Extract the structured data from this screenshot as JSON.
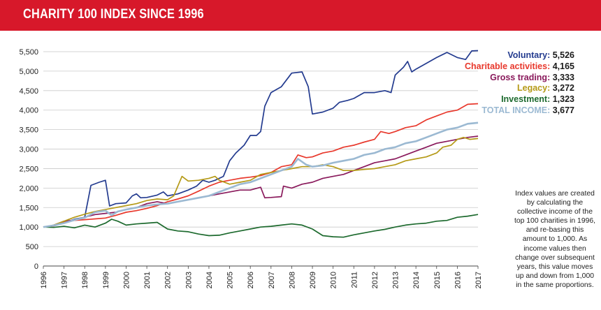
{
  "header": {
    "title": "CHARITY 100 INDEX SINCE 1996"
  },
  "legend": [
    {
      "label": "Voluntary:",
      "value": "5,526",
      "color": "#233b8f"
    },
    {
      "label": "Charitable activities:",
      "value": "4,165",
      "color": "#e8382c"
    },
    {
      "label": "Gross trading:",
      "value": "3,333",
      "color": "#8a1a5c"
    },
    {
      "label": "Legacy:",
      "value": "3,272",
      "color": "#b59a17"
    },
    {
      "label": "Investment:",
      "value": "1,323",
      "color": "#1d6a2e"
    },
    {
      "label": "TOTAL INCOME:",
      "value": "3,677",
      "color": "#9bb9d2"
    }
  ],
  "note": "Index values are created by calculating the collective income of the top 100 charities in 1996, and re-basing this amount to 1,000. As income values then change over subsequent years, this value moves up and down from 1,000 in the same proportions.",
  "chart_data": {
    "type": "line",
    "title": "CHARITY 100 INDEX SINCE 1996",
    "ylim": [
      0,
      5500
    ],
    "xlim": [
      1996,
      2017
    ],
    "yticks": [
      0,
      500,
      1000,
      1500,
      2000,
      2500,
      3000,
      3500,
      4000,
      4500,
      5000,
      5500
    ],
    "ytick_labels": [
      "0",
      "500",
      "1,000",
      "1,500",
      "2,000",
      "2,500",
      "3,000",
      "3,500",
      "4,000",
      "4,500",
      "5,000",
      "5,500"
    ],
    "xticks": [
      "1996",
      "1997",
      "1998",
      "1999",
      "2000",
      "2001",
      "2002",
      "2003",
      "2004",
      "2005",
      "2006",
      "2007",
      "2008",
      "2009",
      "2010",
      "2011",
      "2012",
      "2013",
      "2014",
      "2015",
      "2016",
      "2017"
    ],
    "grid": "horizontal",
    "series": [
      {
        "name": "Voluntary",
        "color": "#233b8f",
        "points": [
          [
            1996,
            1000
          ],
          [
            1996.5,
            1030
          ],
          [
            1997,
            1100
          ],
          [
            1997.5,
            1200
          ],
          [
            1998,
            1250
          ],
          [
            1998.3,
            2070
          ],
          [
            1998.7,
            2150
          ],
          [
            1999,
            2200
          ],
          [
            1999.2,
            1540
          ],
          [
            1999.5,
            1600
          ],
          [
            2000,
            1620
          ],
          [
            2000.3,
            1800
          ],
          [
            2000.5,
            1850
          ],
          [
            2000.7,
            1750
          ],
          [
            2001,
            1760
          ],
          [
            2001.5,
            1820
          ],
          [
            2001.8,
            1900
          ],
          [
            2002,
            1800
          ],
          [
            2002.5,
            1850
          ],
          [
            2003,
            1950
          ],
          [
            2003.4,
            2050
          ],
          [
            2003.7,
            2200
          ],
          [
            2004,
            2150
          ],
          [
            2004.3,
            2200
          ],
          [
            2004.7,
            2300
          ],
          [
            2005,
            2700
          ],
          [
            2005.3,
            2900
          ],
          [
            2005.7,
            3100
          ],
          [
            2006,
            3350
          ],
          [
            2006.3,
            3350
          ],
          [
            2006.5,
            3450
          ],
          [
            2006.7,
            4100
          ],
          [
            2007,
            4450
          ],
          [
            2007.5,
            4600
          ],
          [
            2008,
            4950
          ],
          [
            2008.5,
            4980
          ],
          [
            2008.8,
            4600
          ],
          [
            2009,
            3900
          ],
          [
            2009.5,
            3950
          ],
          [
            2010,
            4050
          ],
          [
            2010.3,
            4200
          ],
          [
            2010.7,
            4250
          ],
          [
            2011,
            4300
          ],
          [
            2011.5,
            4450
          ],
          [
            2012,
            4450
          ],
          [
            2012.5,
            4500
          ],
          [
            2012.8,
            4450
          ],
          [
            2013,
            4900
          ],
          [
            2013.4,
            5100
          ],
          [
            2013.6,
            5250
          ],
          [
            2013.8,
            4980
          ],
          [
            2014,
            5050
          ],
          [
            2014.5,
            5200
          ],
          [
            2015,
            5350
          ],
          [
            2015.5,
            5480
          ],
          [
            2016,
            5350
          ],
          [
            2016.4,
            5300
          ],
          [
            2016.7,
            5520
          ],
          [
            2017,
            5526
          ]
        ]
      },
      {
        "name": "Charitable activities",
        "color": "#e8382c",
        "points": [
          [
            1996,
            1000
          ],
          [
            1996.5,
            1030
          ],
          [
            1997,
            1120
          ],
          [
            1997.5,
            1170
          ],
          [
            1998,
            1190
          ],
          [
            1998.5,
            1210
          ],
          [
            1999,
            1230
          ],
          [
            1999.5,
            1300
          ],
          [
            2000,
            1380
          ],
          [
            2000.5,
            1420
          ],
          [
            2001,
            1480
          ],
          [
            2001.5,
            1550
          ],
          [
            2002,
            1650
          ],
          [
            2002.5,
            1720
          ],
          [
            2003,
            1800
          ],
          [
            2003.5,
            1920
          ],
          [
            2004,
            2050
          ],
          [
            2004.5,
            2150
          ],
          [
            2005,
            2200
          ],
          [
            2005.5,
            2250
          ],
          [
            2006,
            2280
          ],
          [
            2006.5,
            2320
          ],
          [
            2007,
            2400
          ],
          [
            2007.5,
            2550
          ],
          [
            2008,
            2600
          ],
          [
            2008.3,
            2850
          ],
          [
            2008.7,
            2780
          ],
          [
            2009,
            2800
          ],
          [
            2009.5,
            2900
          ],
          [
            2010,
            2950
          ],
          [
            2010.5,
            3050
          ],
          [
            2011,
            3100
          ],
          [
            2011.5,
            3180
          ],
          [
            2012,
            3250
          ],
          [
            2012.3,
            3450
          ],
          [
            2012.7,
            3400
          ],
          [
            2013,
            3450
          ],
          [
            2013.5,
            3550
          ],
          [
            2014,
            3600
          ],
          [
            2014.5,
            3750
          ],
          [
            2015,
            3850
          ],
          [
            2015.5,
            3950
          ],
          [
            2016,
            4000
          ],
          [
            2016.5,
            4150
          ],
          [
            2017,
            4165
          ]
        ]
      },
      {
        "name": "Gross trading",
        "color": "#8a1a5c",
        "points": [
          [
            1996,
            1000
          ],
          [
            1996.5,
            1050
          ],
          [
            1997,
            1150
          ],
          [
            1997.5,
            1180
          ],
          [
            1998,
            1250
          ],
          [
            1998.5,
            1320
          ],
          [
            1999,
            1350
          ],
          [
            1999.5,
            1380
          ],
          [
            2000,
            1450
          ],
          [
            2000.5,
            1500
          ],
          [
            2001,
            1600
          ],
          [
            2001.5,
            1650
          ],
          [
            2002,
            1600
          ],
          [
            2002.5,
            1650
          ],
          [
            2003,
            1700
          ],
          [
            2003.5,
            1750
          ],
          [
            2004,
            1800
          ],
          [
            2004.5,
            1850
          ],
          [
            2005,
            1900
          ],
          [
            2005.5,
            1950
          ],
          [
            2006,
            1950
          ],
          [
            2006.5,
            2020
          ],
          [
            2006.7,
            1750
          ],
          [
            2007,
            1760
          ],
          [
            2007.5,
            1780
          ],
          [
            2007.6,
            2050
          ],
          [
            2008,
            2000
          ],
          [
            2008.5,
            2100
          ],
          [
            2009,
            2150
          ],
          [
            2009.5,
            2250
          ],
          [
            2010,
            2300
          ],
          [
            2010.5,
            2350
          ],
          [
            2011,
            2450
          ],
          [
            2011.5,
            2550
          ],
          [
            2012,
            2650
          ],
          [
            2012.5,
            2700
          ],
          [
            2013,
            2750
          ],
          [
            2013.5,
            2850
          ],
          [
            2014,
            2950
          ],
          [
            2014.5,
            3050
          ],
          [
            2015,
            3150
          ],
          [
            2015.5,
            3200
          ],
          [
            2016,
            3250
          ],
          [
            2016.5,
            3300
          ],
          [
            2017,
            3333
          ]
        ]
      },
      {
        "name": "Legacy",
        "color": "#b59a17",
        "points": [
          [
            1996,
            1000
          ],
          [
            1996.5,
            1050
          ],
          [
            1997,
            1150
          ],
          [
            1997.5,
            1250
          ],
          [
            1998,
            1330
          ],
          [
            1998.5,
            1400
          ],
          [
            1999,
            1450
          ],
          [
            1999.5,
            1500
          ],
          [
            2000,
            1550
          ],
          [
            2000.5,
            1600
          ],
          [
            2001,
            1680
          ],
          [
            2001.5,
            1720
          ],
          [
            2002,
            1700
          ],
          [
            2002.3,
            1800
          ],
          [
            2002.7,
            2300
          ],
          [
            2003,
            2180
          ],
          [
            2003.5,
            2200
          ],
          [
            2004,
            2250
          ],
          [
            2004.3,
            2300
          ],
          [
            2004.5,
            2200
          ],
          [
            2005,
            2100
          ],
          [
            2005.5,
            2150
          ],
          [
            2006,
            2200
          ],
          [
            2006.5,
            2350
          ],
          [
            2007,
            2400
          ],
          [
            2007.5,
            2450
          ],
          [
            2008,
            2500
          ],
          [
            2008.5,
            2550
          ],
          [
            2009,
            2550
          ],
          [
            2009.5,
            2600
          ],
          [
            2010,
            2550
          ],
          [
            2010.5,
            2450
          ],
          [
            2011,
            2450
          ],
          [
            2011.5,
            2480
          ],
          [
            2012,
            2500
          ],
          [
            2012.5,
            2550
          ],
          [
            2013,
            2600
          ],
          [
            2013.5,
            2700
          ],
          [
            2014,
            2750
          ],
          [
            2014.5,
            2800
          ],
          [
            2015,
            2900
          ],
          [
            2015.3,
            3050
          ],
          [
            2015.7,
            3100
          ],
          [
            2016,
            3250
          ],
          [
            2016.3,
            3300
          ],
          [
            2016.6,
            3250
          ],
          [
            2017,
            3272
          ]
        ]
      },
      {
        "name": "Investment",
        "color": "#1d6a2e",
        "points": [
          [
            1996,
            1000
          ],
          [
            1996.5,
            990
          ],
          [
            1997,
            1020
          ],
          [
            1997.5,
            980
          ],
          [
            1998,
            1050
          ],
          [
            1998.5,
            1000
          ],
          [
            1999,
            1100
          ],
          [
            1999.3,
            1200
          ],
          [
            1999.6,
            1150
          ],
          [
            2000,
            1050
          ],
          [
            2000.5,
            1080
          ],
          [
            2001,
            1100
          ],
          [
            2001.5,
            1120
          ],
          [
            2002,
            950
          ],
          [
            2002.5,
            900
          ],
          [
            2003,
            880
          ],
          [
            2003.5,
            820
          ],
          [
            2004,
            780
          ],
          [
            2004.5,
            790
          ],
          [
            2005,
            850
          ],
          [
            2005.5,
            900
          ],
          [
            2006,
            950
          ],
          [
            2006.5,
            1000
          ],
          [
            2007,
            1020
          ],
          [
            2007.5,
            1050
          ],
          [
            2008,
            1080
          ],
          [
            2008.5,
            1050
          ],
          [
            2009,
            950
          ],
          [
            2009.5,
            780
          ],
          [
            2010,
            750
          ],
          [
            2010.5,
            740
          ],
          [
            2011,
            800
          ],
          [
            2011.5,
            850
          ],
          [
            2012,
            900
          ],
          [
            2012.5,
            940
          ],
          [
            2013,
            1000
          ],
          [
            2013.5,
            1050
          ],
          [
            2014,
            1080
          ],
          [
            2014.5,
            1100
          ],
          [
            2015,
            1150
          ],
          [
            2015.5,
            1170
          ],
          [
            2016,
            1250
          ],
          [
            2016.5,
            1280
          ],
          [
            2017,
            1323
          ]
        ]
      },
      {
        "name": "TOTAL INCOME",
        "color": "#9bb9d2",
        "points": [
          [
            1996,
            1000
          ],
          [
            1996.5,
            1040
          ],
          [
            1997,
            1100
          ],
          [
            1997.5,
            1180
          ],
          [
            1998,
            1240
          ],
          [
            1998.5,
            1380
          ],
          [
            1999,
            1420
          ],
          [
            1999.3,
            1300
          ],
          [
            1999.6,
            1400
          ],
          [
            2000,
            1450
          ],
          [
            2000.5,
            1500
          ],
          [
            2001,
            1550
          ],
          [
            2001.5,
            1580
          ],
          [
            2002,
            1600
          ],
          [
            2002.5,
            1650
          ],
          [
            2003,
            1700
          ],
          [
            2003.5,
            1750
          ],
          [
            2004,
            1800
          ],
          [
            2004.5,
            1900
          ],
          [
            2005,
            2000
          ],
          [
            2005.5,
            2100
          ],
          [
            2006,
            2150
          ],
          [
            2006.5,
            2250
          ],
          [
            2007,
            2350
          ],
          [
            2007.5,
            2450
          ],
          [
            2008,
            2550
          ],
          [
            2008.3,
            2750
          ],
          [
            2008.7,
            2600
          ],
          [
            2009,
            2550
          ],
          [
            2009.5,
            2580
          ],
          [
            2010,
            2650
          ],
          [
            2010.5,
            2700
          ],
          [
            2011,
            2750
          ],
          [
            2011.5,
            2850
          ],
          [
            2012,
            2900
          ],
          [
            2012.5,
            3000
          ],
          [
            2013,
            3050
          ],
          [
            2013.5,
            3150
          ],
          [
            2014,
            3200
          ],
          [
            2014.5,
            3300
          ],
          [
            2015,
            3400
          ],
          [
            2015.5,
            3500
          ],
          [
            2016,
            3550
          ],
          [
            2016.5,
            3650
          ],
          [
            2017,
            3677
          ]
        ]
      }
    ]
  }
}
